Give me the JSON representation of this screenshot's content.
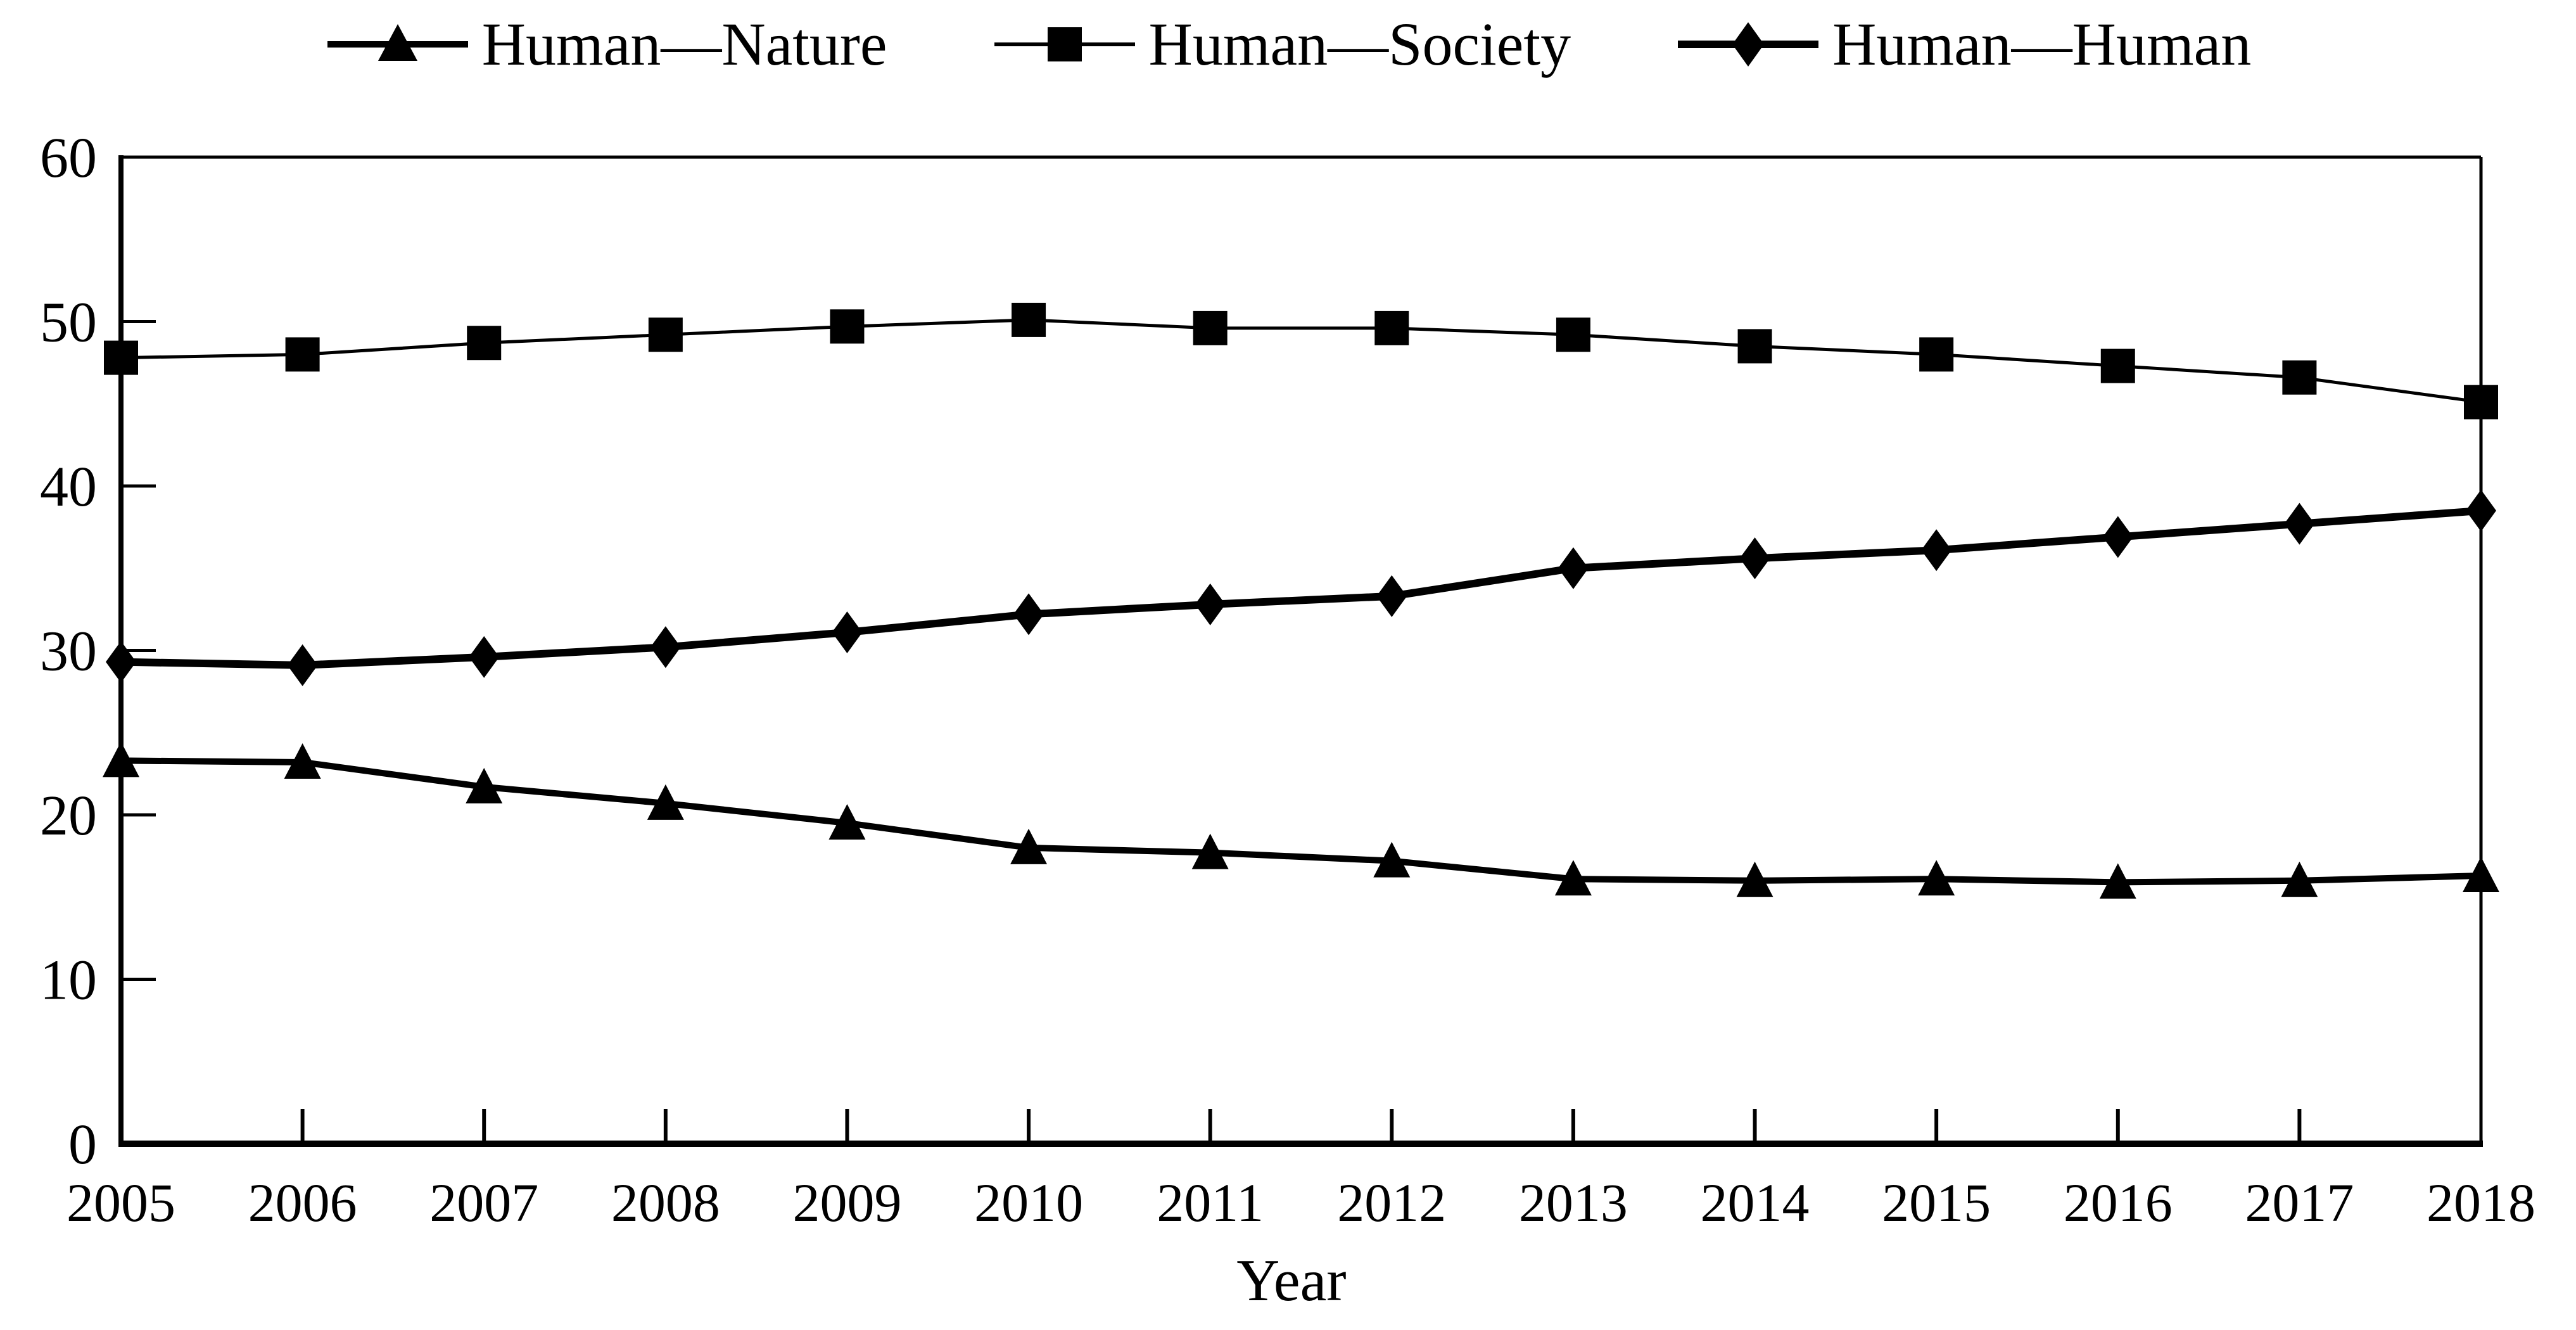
{
  "figure": {
    "background": "#ffffff",
    "ink_color": "#000000"
  },
  "chart_data": {
    "type": "line",
    "title": "",
    "xlabel": "Year",
    "ylabel": "",
    "years": [
      "2005",
      "2006",
      "2007",
      "2008",
      "2009",
      "2010",
      "2011",
      "2012",
      "2013",
      "2014",
      "2015",
      "2016",
      "2017",
      "2018"
    ],
    "y_ticks": [
      0,
      10,
      20,
      30,
      40,
      50,
      60
    ],
    "ylim": [
      0,
      60
    ],
    "grid": false,
    "legend_position": "top-center",
    "frame": "full-box",
    "tick_direction": "in",
    "series": [
      {
        "name": "Human—Nature",
        "marker": "triangle",
        "line_width": 10,
        "values": [
          23.3,
          23.2,
          21.7,
          20.7,
          19.5,
          18.0,
          17.7,
          17.2,
          16.1,
          16.0,
          16.1,
          15.9,
          16.0,
          16.3
        ]
      },
      {
        "name": "Human—Society",
        "marker": "square",
        "line_width": 5,
        "values": [
          47.8,
          48.0,
          48.7,
          49.2,
          49.7,
          50.1,
          49.6,
          49.6,
          49.2,
          48.5,
          48.0,
          47.3,
          46.6,
          45.1
        ]
      },
      {
        "name": "Human—Human",
        "marker": "diamond",
        "line_width": 12,
        "values": [
          29.3,
          29.1,
          29.6,
          30.2,
          31.1,
          32.2,
          32.8,
          33.3,
          35.0,
          35.6,
          36.1,
          36.9,
          37.7,
          38.5
        ]
      }
    ]
  }
}
